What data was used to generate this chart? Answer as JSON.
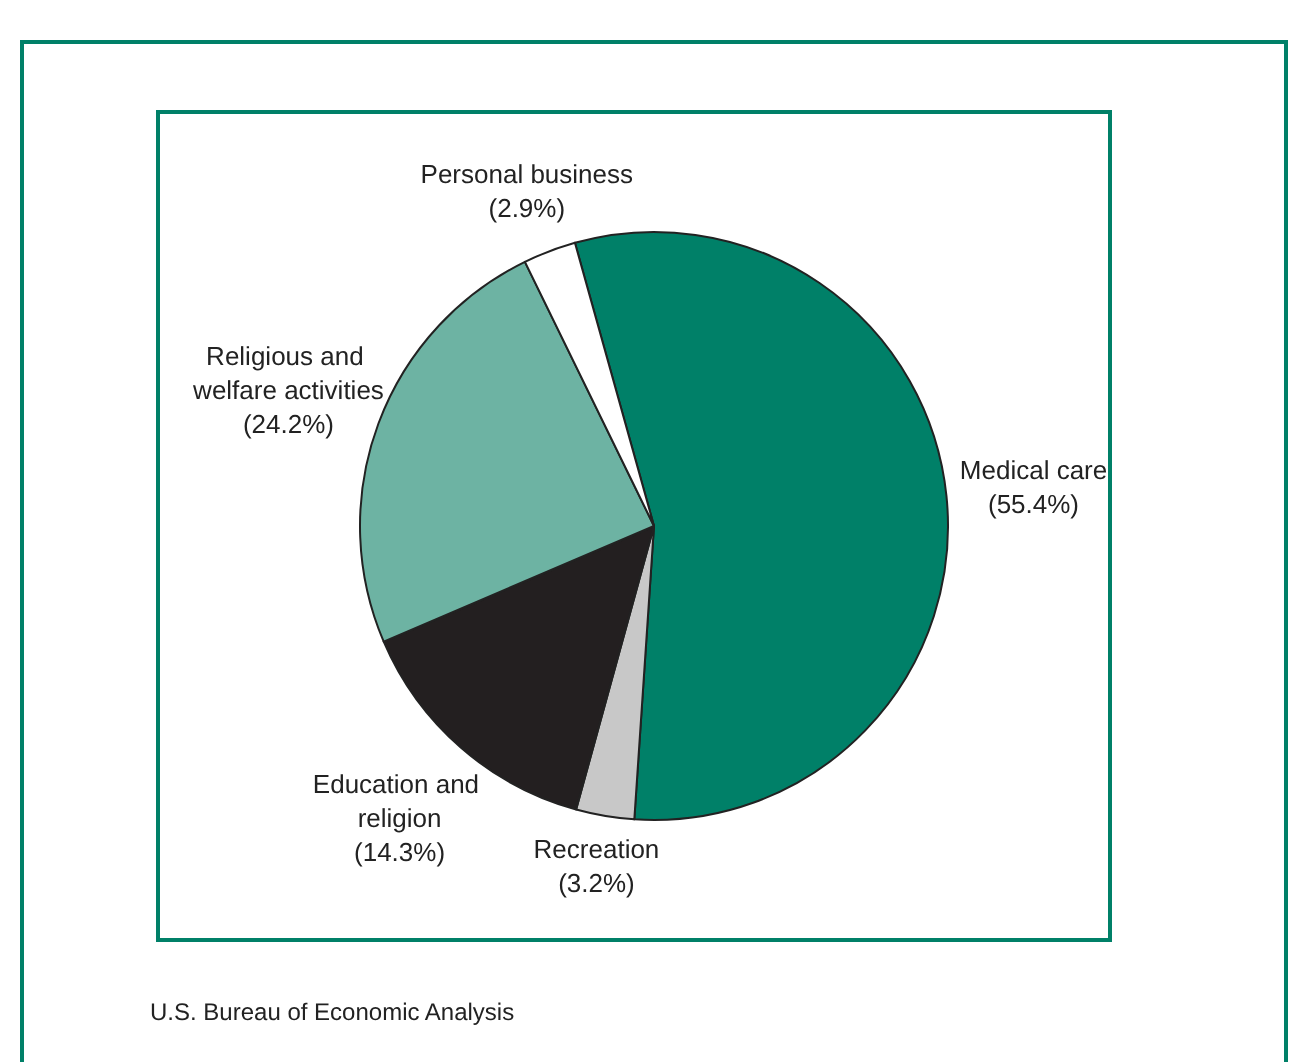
{
  "chart_data": {
    "type": "pie",
    "categories": [
      "Medical care",
      "Recreation",
      "Education and religion",
      "Religious and welfare activities",
      "Personal business"
    ],
    "values": [
      55.4,
      3.2,
      14.3,
      24.2,
      2.9
    ],
    "colors": [
      "#008068",
      "#c8c8c8",
      "#231f20",
      "#6db3a3",
      "#ffffff"
    ],
    "value_labels": [
      "(55.4%)",
      "(3.2%)",
      "(14.3%)",
      "(24.2%)",
      "(2.9%)"
    ],
    "annotations": [
      "U.S. Bureau of Economic Analysis"
    ]
  }
}
